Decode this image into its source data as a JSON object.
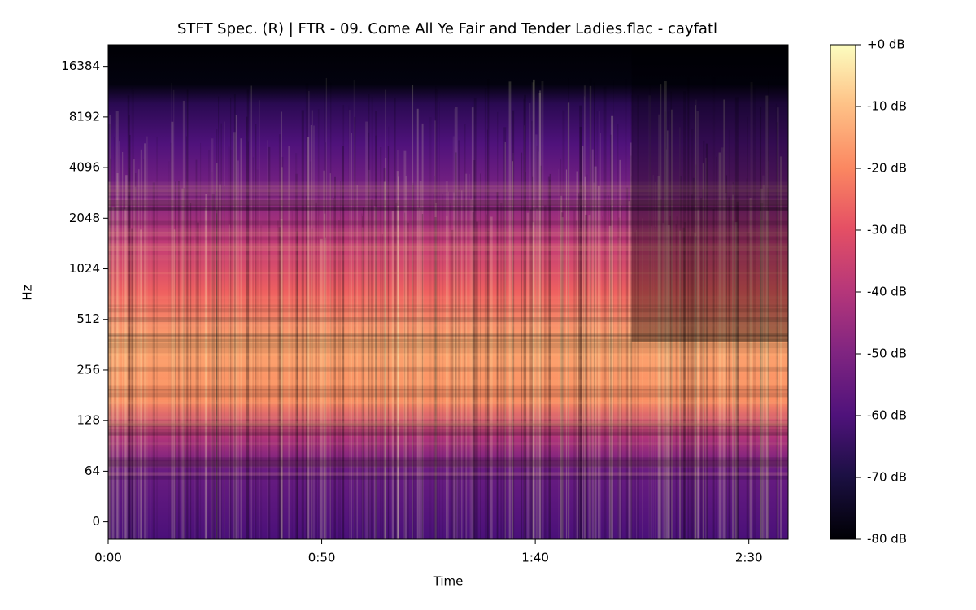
{
  "chart_data": {
    "type": "spectrogram",
    "title": "STFT Spec. (R) | FTR - 09. Come All Ye Fair and Tender Ladies.flac - cayfatl",
    "x_label": "Time",
    "y_label": "Hz",
    "xlim": [
      0,
      159.2
    ],
    "xticks": [
      {
        "value": 0,
        "label": "0:00"
      },
      {
        "value": 50,
        "label": "0:50"
      },
      {
        "value": 100,
        "label": "1:40"
      },
      {
        "value": 150,
        "label": "2:30"
      }
    ],
    "yscale": "symlog",
    "linthresh": 64,
    "ylim": [
      -22,
      22050
    ],
    "yticks": [
      0,
      64,
      128,
      256,
      512,
      1024,
      2048,
      4096,
      8192,
      16384
    ],
    "colormap": "magma",
    "colorbar": {
      "lim": [
        -80,
        0
      ],
      "ticks": [
        {
          "value": 0,
          "label": "+0 dB"
        },
        {
          "value": -10,
          "label": "-10 dB"
        },
        {
          "value": -20,
          "label": "-20 dB"
        },
        {
          "value": -30,
          "label": "-30 dB"
        },
        {
          "value": -40,
          "label": "-40 dB"
        },
        {
          "value": -50,
          "label": "-50 dB"
        },
        {
          "value": -60,
          "label": "-60 dB"
        },
        {
          "value": -70,
          "label": "-70 dB"
        },
        {
          "value": -80,
          "label": "-80 dB"
        }
      ]
    }
  }
}
